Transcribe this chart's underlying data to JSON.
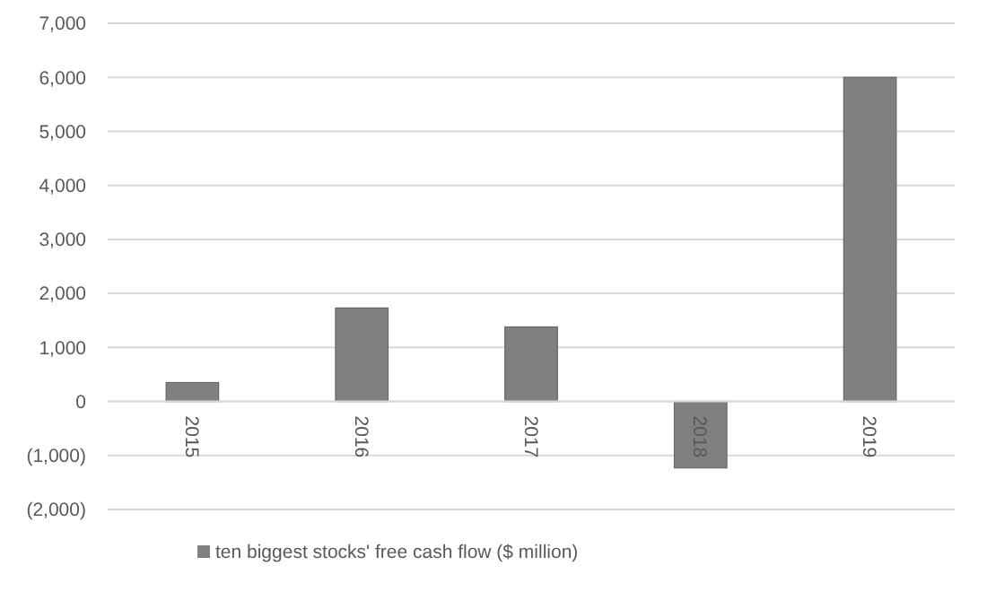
{
  "chart_data": {
    "type": "bar",
    "categories": [
      "2015",
      "2016",
      "2017",
      "2018",
      "2019"
    ],
    "series": [
      {
        "name": "ten biggest stocks' free cash flow ($ million)",
        "color": "#808080",
        "values": [
          350,
          1730,
          1380,
          -1230,
          6000
        ]
      }
    ],
    "ylim": [
      -2000,
      7000
    ],
    "yticks": [
      {
        "value": -2000,
        "label": "(2,000)"
      },
      {
        "value": -1000,
        "label": "(1,000)"
      },
      0,
      {
        "value": 1000,
        "label": "1,000"
      },
      {
        "value": 2000,
        "label": "2,000"
      },
      {
        "value": 3000,
        "label": "3,000"
      },
      {
        "value": 4000,
        "label": "4,000"
      },
      {
        "value": 5000,
        "label": "5,000"
      },
      {
        "value": 6000,
        "label": "6,000"
      },
      {
        "value": 7000,
        "label": "7,000"
      }
    ],
    "grid": "y",
    "legend": "bottom"
  }
}
